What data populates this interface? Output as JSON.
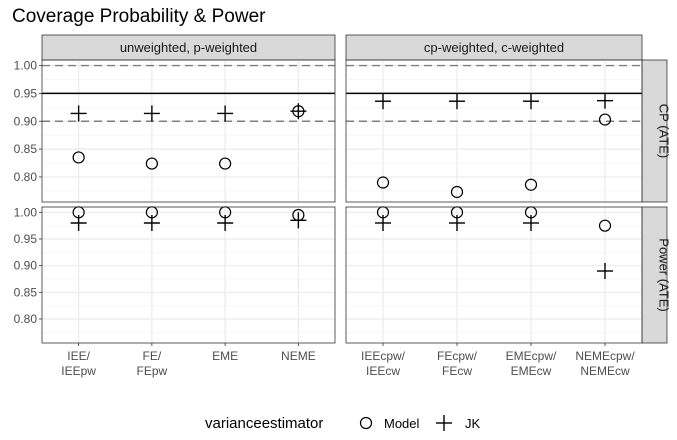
{
  "chart_data": {
    "type": "scatter",
    "title": "Coverage Probability & Power",
    "legend": {
      "title": "varianceestimator",
      "position": "bottom",
      "entries": [
        {
          "name": "Model",
          "shape": "circle"
        },
        {
          "name": "JK",
          "shape": "cross"
        }
      ]
    },
    "grid": true,
    "column_facets": [
      "unweighted, p-weighted",
      "cp-weighted, c-weighted"
    ],
    "row_facets": [
      "CP (ATE)",
      "Power (ATE)"
    ],
    "x_categories": [
      [
        "IEE/\nIEEpw",
        "FE/\nFEpw",
        "EME",
        "NEME"
      ],
      [
        "IEEcpw/\nIEEcw",
        "FEcpw/\nFEcw",
        "EMEcpw/\nEMEcw",
        "NEMEcpw/\nNEMEcw"
      ]
    ],
    "y_ticks": [
      [
        "1.00",
        "0.95",
        "0.90",
        "0.85",
        "0.80"
      ],
      [
        "1.00",
        "0.95",
        "0.90",
        "0.85",
        "0.80"
      ]
    ],
    "y_ranges": [
      [
        0.755,
        1.01
      ],
      [
        0.755,
        1.01
      ]
    ],
    "reference_lines": {
      "CP (ATE)": [
        {
          "y": 1.0,
          "style": "dashed"
        },
        {
          "y": 0.95,
          "style": "solid"
        },
        {
          "y": 0.9,
          "style": "dashed"
        }
      ],
      "Power (ATE)": []
    },
    "series": [
      {
        "name": "Model",
        "values": {
          "CP (ATE)": [
            [
              0.835,
              0.824,
              0.824,
              0.918
            ],
            [
              0.79,
              0.773,
              0.786,
              0.903
            ]
          ],
          "Power (ATE)": [
            [
              1.0,
              1.0,
              1.0,
              0.995
            ],
            [
              1.0,
              1.0,
              1.0,
              0.975
            ]
          ]
        }
      },
      {
        "name": "JK",
        "values": {
          "CP (ATE)": [
            [
              0.914,
              0.914,
              0.914,
              0.918
            ],
            [
              0.936,
              0.936,
              0.936,
              0.937
            ]
          ],
          "Power (ATE)": [
            [
              0.98,
              0.98,
              0.98,
              0.985
            ],
            [
              0.98,
              0.98,
              0.98,
              0.89
            ]
          ]
        }
      }
    ],
    "colors": {
      "strip_fill": "#d9d9d9",
      "grid_major": "#ebebeb",
      "grid_minor": "#f5f5f5",
      "ref_line": "#000000",
      "ref_dash": "#7f7f7f",
      "marker": "#000000",
      "text": "#4d4d4d"
    }
  }
}
